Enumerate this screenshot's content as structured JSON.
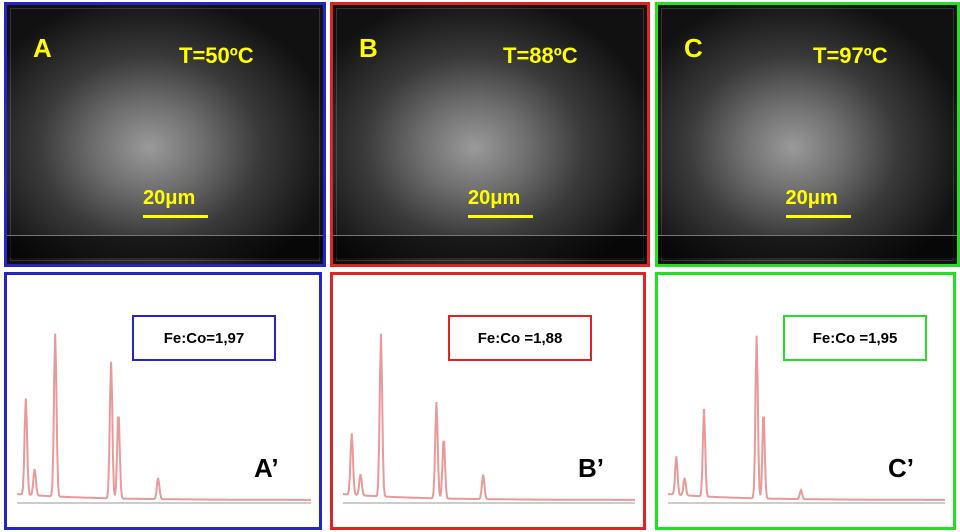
{
  "panels": [
    {
      "label": "A",
      "temperature": "T=50ºC",
      "scale_bar": "20μm",
      "spectrum_label": "A’",
      "ratio": "Fe:Co=1,97"
    },
    {
      "label": "B",
      "temperature": "T=88ºC",
      "scale_bar": "20μm",
      "spectrum_label": "B’",
      "ratio": "Fe:Co =1,88"
    },
    {
      "label": "C",
      "temperature": "T=97ºC",
      "scale_bar": "20μm",
      "spectrum_label": "C’",
      "ratio": "Fe:Co =1,95"
    }
  ]
}
